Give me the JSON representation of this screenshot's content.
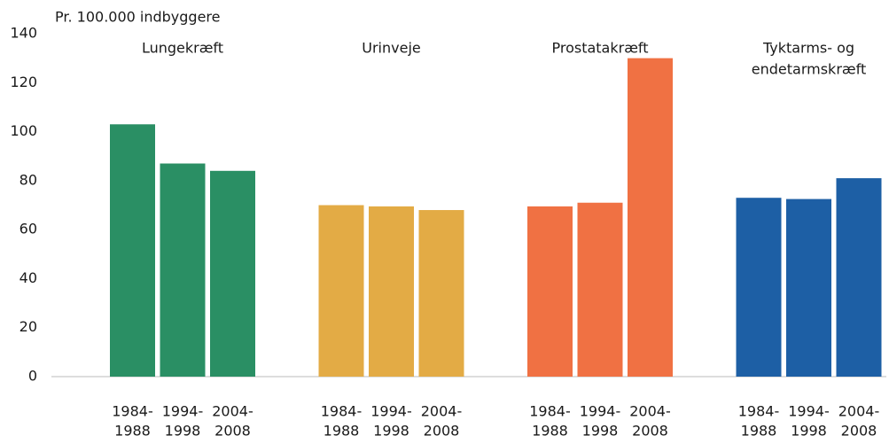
{
  "chart_data": {
    "type": "bar",
    "y_label": "Pr. 100.000 indbyggere",
    "categories": [
      [
        "1984-",
        "1988"
      ],
      [
        "1994-",
        "1998"
      ],
      [
        "2004-",
        "2008"
      ]
    ],
    "series": [
      {
        "name": [
          "Lungekræft"
        ],
        "color": "#2a8f64",
        "values": [
          103,
          87,
          84
        ]
      },
      {
        "name": [
          "Urinveje"
        ],
        "color": "#e3ab45",
        "values": [
          70,
          69.5,
          68
        ]
      },
      {
        "name": [
          "Prostatakræft"
        ],
        "color": "#f07143",
        "values": [
          69.5,
          71,
          130
        ]
      },
      {
        "name": [
          "Tyktarms- og",
          "endetarmskræft"
        ],
        "color": "#1d5fa5",
        "values": [
          73,
          72.5,
          81
        ]
      }
    ],
    "ylim": [
      0,
      140
    ],
    "yticks": [
      0,
      20,
      40,
      60,
      80,
      100,
      120,
      140
    ],
    "grid": false
  }
}
